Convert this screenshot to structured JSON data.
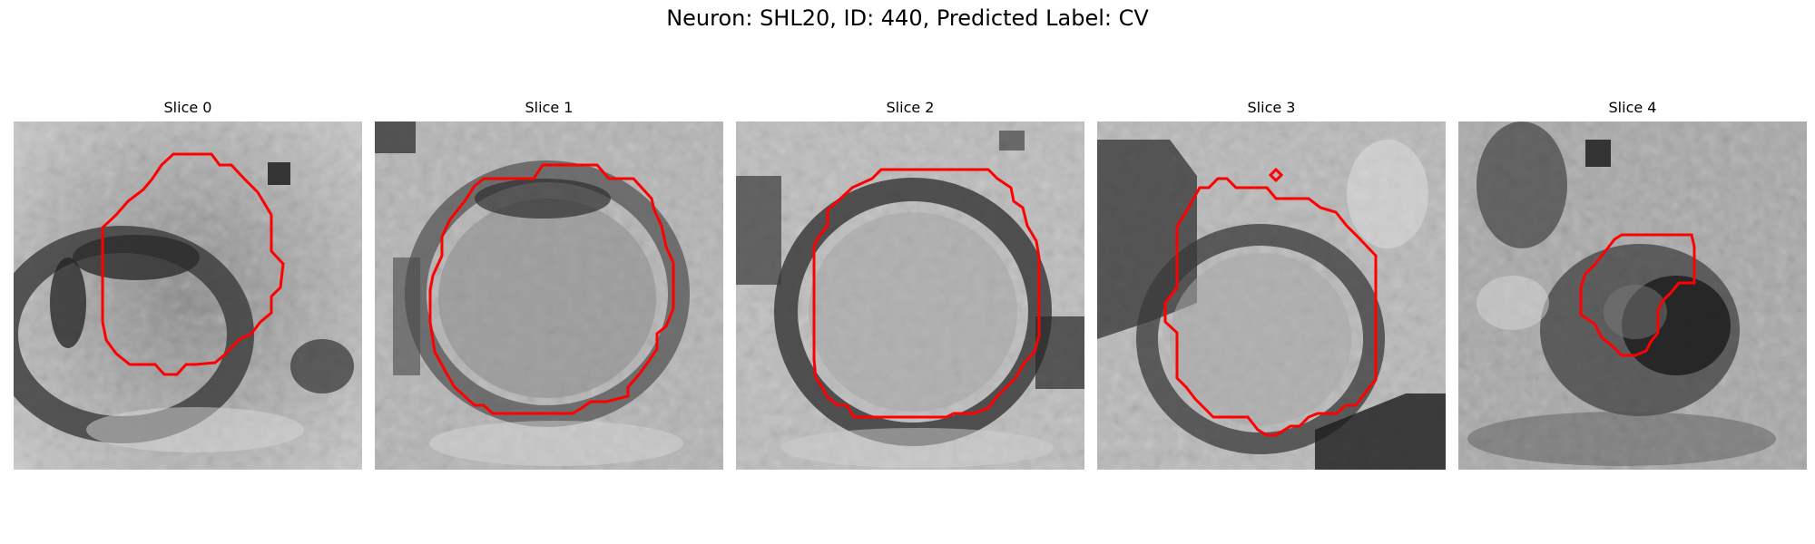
{
  "figure": {
    "title": "Neuron: SHL20, ID: 440, Predicted Label: CV",
    "contour_color": "#ff0000",
    "colormap": "gray"
  },
  "panels": [
    {
      "title": "Slice 0"
    },
    {
      "title": "Slice 1"
    },
    {
      "title": "Slice 2"
    },
    {
      "title": "Slice 3"
    },
    {
      "title": "Slice 4"
    }
  ]
}
